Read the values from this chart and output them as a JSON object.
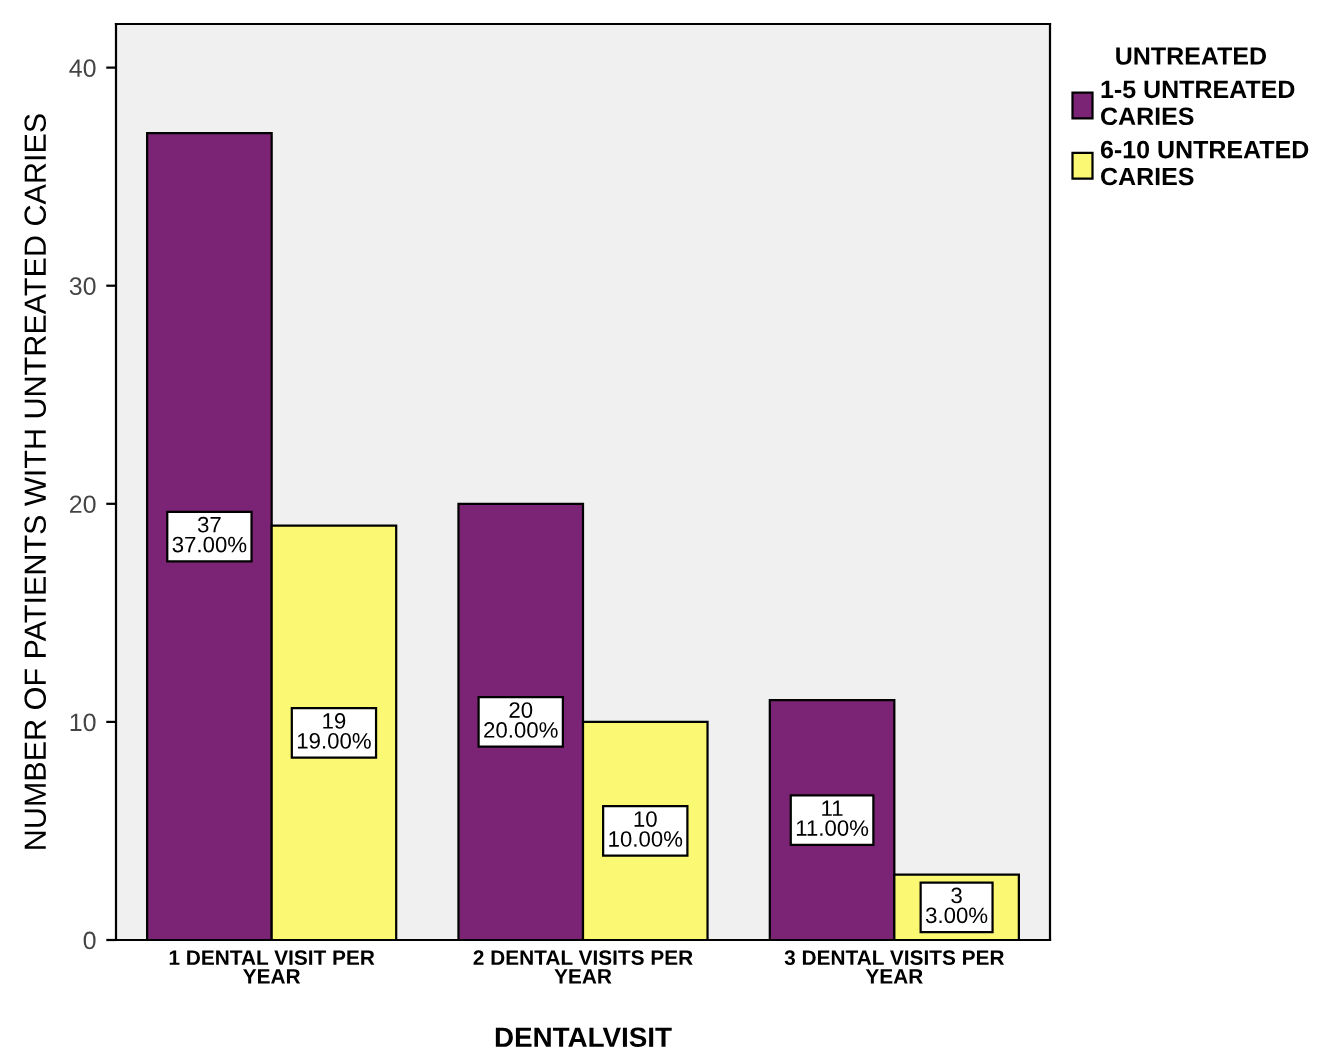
{
  "chart_data": {
    "type": "bar",
    "xlabel": "DENTALVISIT",
    "ylabel": "NUMBER OF PATIENTS WITH UNTREATED CARIES",
    "legend_title": "UNTREATED",
    "categories": [
      "1 DENTAL VISIT PER\nYEAR",
      "2 DENTAL VISITS PER\nYEAR",
      "3 DENTAL VISITS PER\nYEAR"
    ],
    "series": [
      {
        "name": "1-5 UNTREATED\nCARIES",
        "color": "#7b2476",
        "values": [
          37,
          20,
          11
        ],
        "value_labels": [
          "37\n37.00%",
          "20\n20.00%",
          "11\n11.00%"
        ]
      },
      {
        "name": "6-10 UNTREATED\nCARIES",
        "color": "#fbf873",
        "values": [
          19,
          10,
          3
        ],
        "value_labels": [
          "19\n19.00%",
          "10\n10.00%",
          "3\n3.00%"
        ]
      }
    ],
    "ylim": [
      0,
      42
    ],
    "yticks": [
      0,
      10,
      20,
      30,
      40
    ],
    "grid": false,
    "legend": "top right"
  }
}
